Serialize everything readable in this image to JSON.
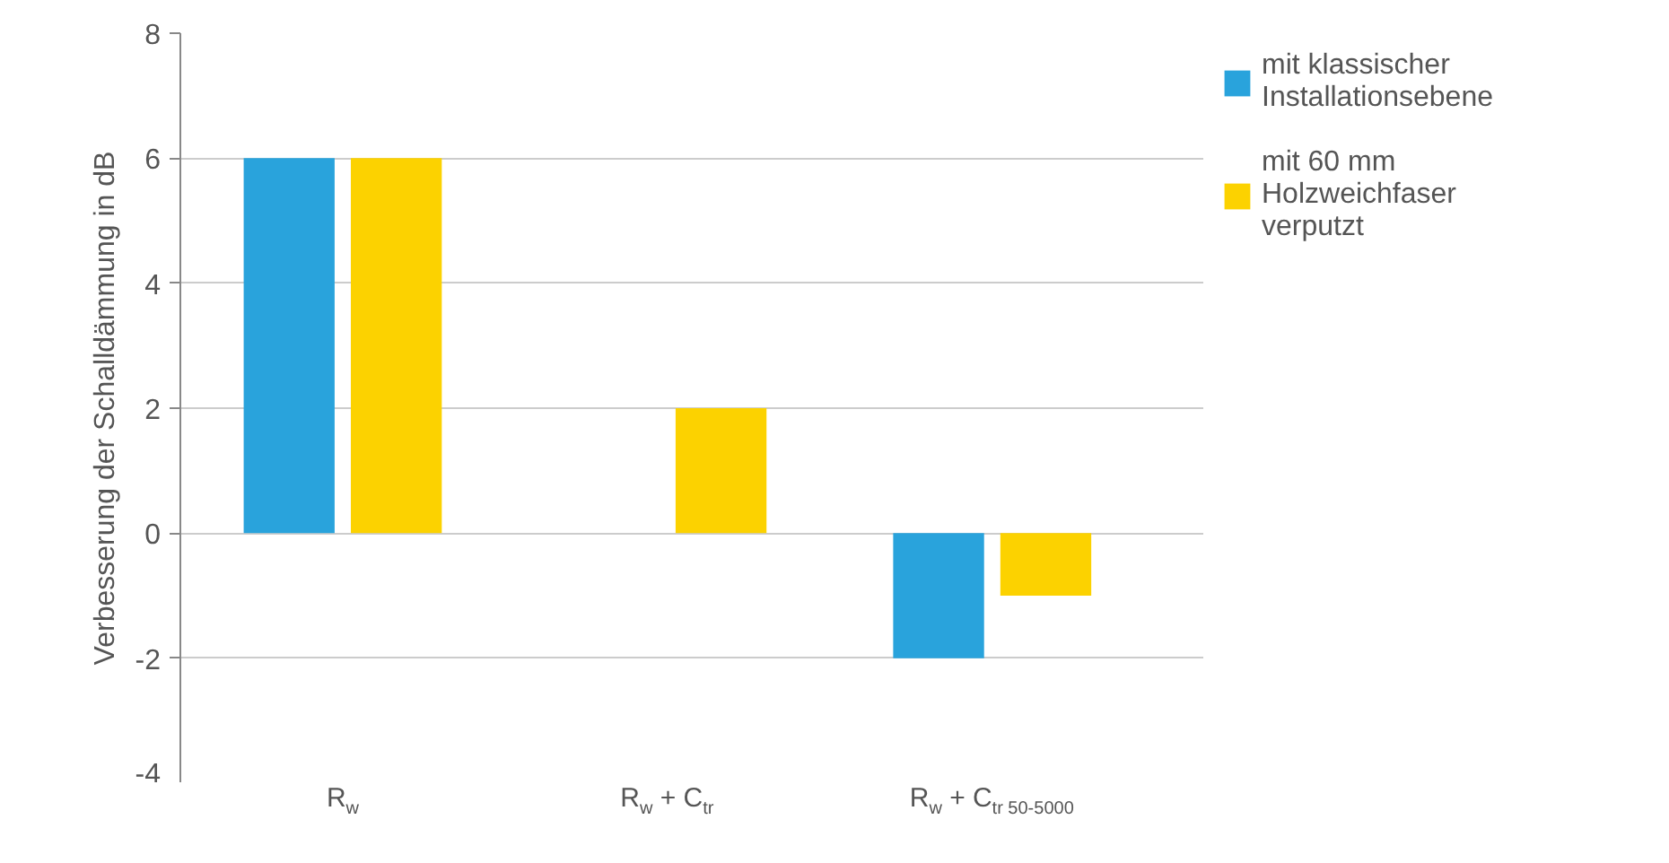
{
  "chart_data": {
    "type": "bar",
    "ylabel": "Verbesserung der Schalldämmung in dB",
    "categories": [
      "R$_{w}$",
      "R$_{w}$ + C$_{tr}$",
      "R$_{w}$ + C$_{tr 50-5000}$"
    ],
    "series": [
      {
        "name": "mit klassischer Installationsebene",
        "color": "#29a3dc",
        "values": [
          6,
          0,
          -2
        ]
      },
      {
        "name": "mit 60 mm Holzweichfaser verputzt",
        "color": "#fcd200",
        "values": [
          6,
          2,
          -1
        ]
      }
    ],
    "ylim": [
      -4,
      8
    ],
    "yticks": [
      -4,
      -2,
      0,
      2,
      4,
      6,
      8
    ],
    "grid": "y",
    "legend": "top right"
  }
}
